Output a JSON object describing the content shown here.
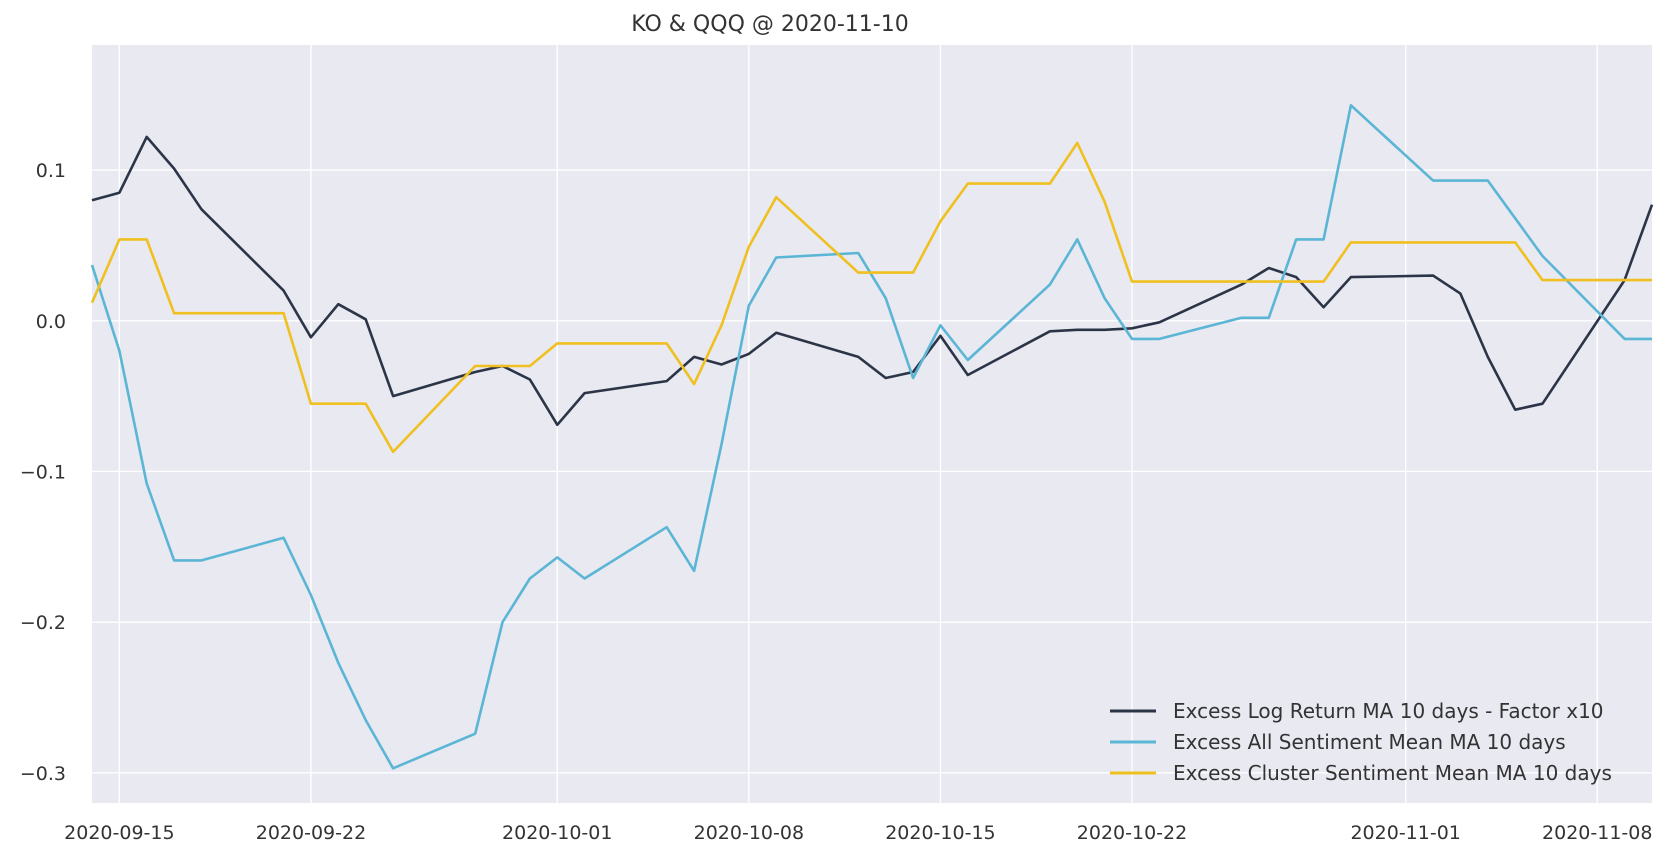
{
  "chart_data": {
    "type": "line",
    "title": "KO & QQQ @ 2020-11-10",
    "xlabel": "",
    "ylabel": "",
    "x_ticks": [
      "2020-09-15",
      "2020-09-22",
      "2020-10-01",
      "2020-10-08",
      "2020-10-15",
      "2020-10-22",
      "2020-11-01",
      "2020-11-08"
    ],
    "y_ticks": [
      -0.3,
      -0.2,
      -0.1,
      0.0,
      0.1
    ],
    "y_tick_labels": [
      "−0.3",
      "−0.2",
      "−0.1",
      "0.0",
      "0.1"
    ],
    "xlim": [
      "2020-09-14",
      "2020-11-10"
    ],
    "ylim": [
      -0.32,
      0.183
    ],
    "grid": true,
    "legend_position": "bottom-right",
    "colors": {
      "background": "#e8e9f1",
      "grid": "#ffffff"
    },
    "series": [
      {
        "name": "Excess Log Return MA 10 days - Factor x10",
        "color": "#2c3547",
        "points": [
          [
            "2020-09-14",
            0.08
          ],
          [
            "2020-09-15",
            0.085
          ],
          [
            "2020-09-16",
            0.122
          ],
          [
            "2020-09-17",
            0.101
          ],
          [
            "2020-09-18",
            0.074
          ],
          [
            "2020-09-21",
            0.02
          ],
          [
            "2020-09-22",
            -0.011
          ],
          [
            "2020-09-23",
            0.011
          ],
          [
            "2020-09-24",
            0.001
          ],
          [
            "2020-09-25",
            -0.05
          ],
          [
            "2020-09-28",
            -0.034
          ],
          [
            "2020-09-29",
            -0.03
          ],
          [
            "2020-09-30",
            -0.039
          ],
          [
            "2020-10-01",
            -0.069
          ],
          [
            "2020-10-02",
            -0.048
          ],
          [
            "2020-10-05",
            -0.04
          ],
          [
            "2020-10-06",
            -0.024
          ],
          [
            "2020-10-07",
            -0.029
          ],
          [
            "2020-10-08",
            -0.022
          ],
          [
            "2020-10-09",
            -0.008
          ],
          [
            "2020-10-12",
            -0.024
          ],
          [
            "2020-10-13",
            -0.038
          ],
          [
            "2020-10-14",
            -0.034
          ],
          [
            "2020-10-15",
            -0.01
          ],
          [
            "2020-10-16",
            -0.036
          ],
          [
            "2020-10-19",
            -0.007
          ],
          [
            "2020-10-20",
            -0.006
          ],
          [
            "2020-10-21",
            -0.006
          ],
          [
            "2020-10-22",
            -0.005
          ],
          [
            "2020-10-23",
            -0.001
          ],
          [
            "2020-10-26",
            0.024
          ],
          [
            "2020-10-27",
            0.035
          ],
          [
            "2020-10-28",
            0.029
          ],
          [
            "2020-10-29",
            0.009
          ],
          [
            "2020-10-30",
            0.029
          ],
          [
            "2020-11-02",
            0.03
          ],
          [
            "2020-11-03",
            0.018
          ],
          [
            "2020-11-04",
            -0.024
          ],
          [
            "2020-11-05",
            -0.059
          ],
          [
            "2020-11-06",
            -0.055
          ],
          [
            "2020-11-09",
            0.027
          ],
          [
            "2020-11-10",
            0.077
          ]
        ]
      },
      {
        "name": "Excess All Sentiment Mean MA 10 days",
        "color": "#5bb5d5",
        "points": [
          [
            "2020-09-14",
            0.037
          ],
          [
            "2020-09-15",
            -0.02
          ],
          [
            "2020-09-16",
            -0.108
          ],
          [
            "2020-09-17",
            -0.159
          ],
          [
            "2020-09-18",
            -0.159
          ],
          [
            "2020-09-21",
            -0.144
          ],
          [
            "2020-09-22",
            -0.182
          ],
          [
            "2020-09-23",
            -0.227
          ],
          [
            "2020-09-24",
            -0.265
          ],
          [
            "2020-09-25",
            -0.297
          ],
          [
            "2020-09-28",
            -0.274
          ],
          [
            "2020-09-29",
            -0.2
          ],
          [
            "2020-09-30",
            -0.171
          ],
          [
            "2020-10-01",
            -0.157
          ],
          [
            "2020-10-02",
            -0.171
          ],
          [
            "2020-10-05",
            -0.137
          ],
          [
            "2020-10-06",
            -0.166
          ],
          [
            "2020-10-07",
            -0.082
          ],
          [
            "2020-10-08",
            0.01
          ],
          [
            "2020-10-09",
            0.042
          ],
          [
            "2020-10-12",
            0.045
          ],
          [
            "2020-10-13",
            0.015
          ],
          [
            "2020-10-14",
            -0.038
          ],
          [
            "2020-10-15",
            -0.003
          ],
          [
            "2020-10-16",
            -0.026
          ],
          [
            "2020-10-19",
            0.024
          ],
          [
            "2020-10-20",
            0.054
          ],
          [
            "2020-10-21",
            0.015
          ],
          [
            "2020-10-22",
            -0.012
          ],
          [
            "2020-10-23",
            -0.012
          ],
          [
            "2020-10-26",
            0.002
          ],
          [
            "2020-10-27",
            0.002
          ],
          [
            "2020-10-28",
            0.054
          ],
          [
            "2020-10-29",
            0.054
          ],
          [
            "2020-10-30",
            0.143
          ],
          [
            "2020-11-02",
            0.093
          ],
          [
            "2020-11-03",
            0.093
          ],
          [
            "2020-11-04",
            0.093
          ],
          [
            "2020-11-05",
            0.068
          ],
          [
            "2020-11-06",
            0.043
          ],
          [
            "2020-11-09",
            -0.012
          ],
          [
            "2020-11-10",
            -0.012
          ]
        ]
      },
      {
        "name": "Excess Cluster Sentiment Mean MA 10 days",
        "color": "#f0c020",
        "points": [
          [
            "2020-09-14",
            0.012
          ],
          [
            "2020-09-15",
            0.054
          ],
          [
            "2020-09-16",
            0.054
          ],
          [
            "2020-09-17",
            0.005
          ],
          [
            "2020-09-18",
            0.005
          ],
          [
            "2020-09-21",
            0.005
          ],
          [
            "2020-09-22",
            -0.055
          ],
          [
            "2020-09-23",
            -0.055
          ],
          [
            "2020-09-24",
            -0.055
          ],
          [
            "2020-09-25",
            -0.087
          ],
          [
            "2020-09-28",
            -0.03
          ],
          [
            "2020-09-29",
            -0.03
          ],
          [
            "2020-09-30",
            -0.03
          ],
          [
            "2020-10-01",
            -0.015
          ],
          [
            "2020-10-02",
            -0.015
          ],
          [
            "2020-10-05",
            -0.015
          ],
          [
            "2020-10-06",
            -0.042
          ],
          [
            "2020-10-07",
            -0.003
          ],
          [
            "2020-10-08",
            0.049
          ],
          [
            "2020-10-09",
            0.082
          ],
          [
            "2020-10-12",
            0.032
          ],
          [
            "2020-10-13",
            0.032
          ],
          [
            "2020-10-14",
            0.032
          ],
          [
            "2020-10-15",
            0.066
          ],
          [
            "2020-10-16",
            0.091
          ],
          [
            "2020-10-19",
            0.091
          ],
          [
            "2020-10-20",
            0.118
          ],
          [
            "2020-10-21",
            0.079
          ],
          [
            "2020-10-22",
            0.026
          ],
          [
            "2020-10-23",
            0.026
          ],
          [
            "2020-10-26",
            0.026
          ],
          [
            "2020-10-27",
            0.026
          ],
          [
            "2020-10-28",
            0.026
          ],
          [
            "2020-10-29",
            0.026
          ],
          [
            "2020-10-30",
            0.052
          ],
          [
            "2020-11-02",
            0.052
          ],
          [
            "2020-11-03",
            0.052
          ],
          [
            "2020-11-04",
            0.052
          ],
          [
            "2020-11-05",
            0.052
          ],
          [
            "2020-11-06",
            0.027
          ],
          [
            "2020-11-09",
            0.027
          ],
          [
            "2020-11-10",
            0.027
          ]
        ]
      }
    ]
  }
}
